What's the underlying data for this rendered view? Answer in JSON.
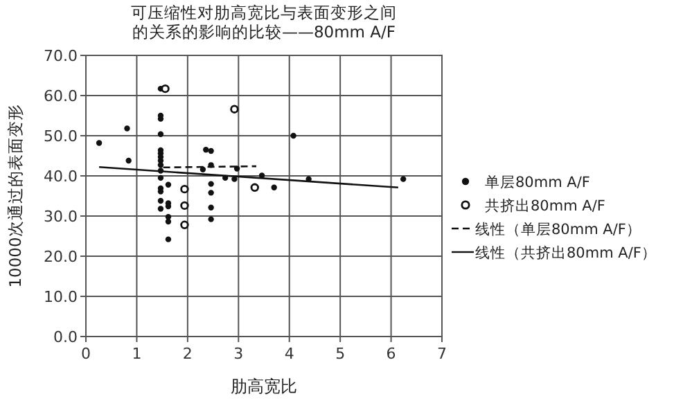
{
  "chart_data": {
    "type": "scatter",
    "title": "可压缩性对肋高宽比与表面变形之间的关系的影响的比较——80mm A/F",
    "xlabel": "肋高宽比",
    "ylabel": "10000次通过的表面变形",
    "xlim": [
      0,
      7
    ],
    "xticks": [
      0,
      1,
      2,
      3,
      4,
      5,
      6,
      7
    ],
    "ylim": [
      0,
      70
    ],
    "yticks": [
      {
        "value": 0,
        "label": "0.0"
      },
      {
        "value": 10,
        "label": "10.0"
      },
      {
        "value": 20,
        "label": "20.0"
      },
      {
        "value": 30,
        "label": "30.0"
      },
      {
        "value": 40,
        "label": "40.0"
      },
      {
        "value": 50,
        "label": "50.0"
      },
      {
        "value": 60,
        "label": "60.0"
      },
      {
        "value": 70,
        "label": "70.0"
      }
    ],
    "grid": true,
    "legend": "right",
    "series": [
      {
        "name": "单层80mm A/F",
        "marker": "circle",
        "color": "#111111",
        "x": [
          0.26,
          0.81,
          0.84,
          1.47,
          1.47,
          1.47,
          1.47,
          1.47,
          1.47,
          1.47,
          1.47,
          1.47,
          1.47,
          1.47,
          1.47,
          1.47,
          1.47,
          1.47,
          1.62,
          1.62,
          1.62,
          1.62,
          1.62,
          1.62,
          2.3,
          2.36,
          2.46,
          2.46,
          2.46,
          2.46,
          2.46,
          2.46,
          2.74,
          2.92,
          2.97,
          3.46,
          3.7,
          4.08,
          4.38,
          6.24
        ],
        "values": [
          48.2,
          51.8,
          43.8,
          61.7,
          55,
          54.2,
          50.4,
          46.4,
          45.6,
          44.7,
          43.8,
          42.7,
          41.3,
          39.5,
          36.9,
          36.1,
          33.8,
          31.8,
          37.8,
          33.2,
          32.4,
          29.8,
          28.6,
          24.2,
          41.6,
          46.5,
          46.2,
          42.7,
          38,
          35.8,
          32.1,
          29.2,
          39.5,
          39.2,
          41.8,
          40.1,
          37.1,
          50,
          39.2,
          39.2
        ]
      },
      {
        "name": "共挤出80mm A/F",
        "marker": "circle",
        "color": "#111111",
        "x": [
          1.56,
          1.94,
          1.94,
          1.94,
          2.92,
          3.32
        ],
        "values": [
          61.7,
          36.7,
          32.6,
          27.8,
          56.6,
          37.1
        ]
      },
      {
        "name": "线性（单层80mm A/F）",
        "type": "line",
        "marker": "none",
        "line_style": "dashed",
        "color": "#111111",
        "x": [
          1.52,
          3.35
        ],
        "values": [
          42.1,
          42.4
        ]
      },
      {
        "name": "线性（共挤出80mm A/F）",
        "type": "line",
        "marker": "none",
        "line_style": "solid",
        "color": "#111111",
        "x": [
          0.26,
          6.14
        ],
        "values": [
          42.2,
          37.1
        ]
      }
    ]
  }
}
